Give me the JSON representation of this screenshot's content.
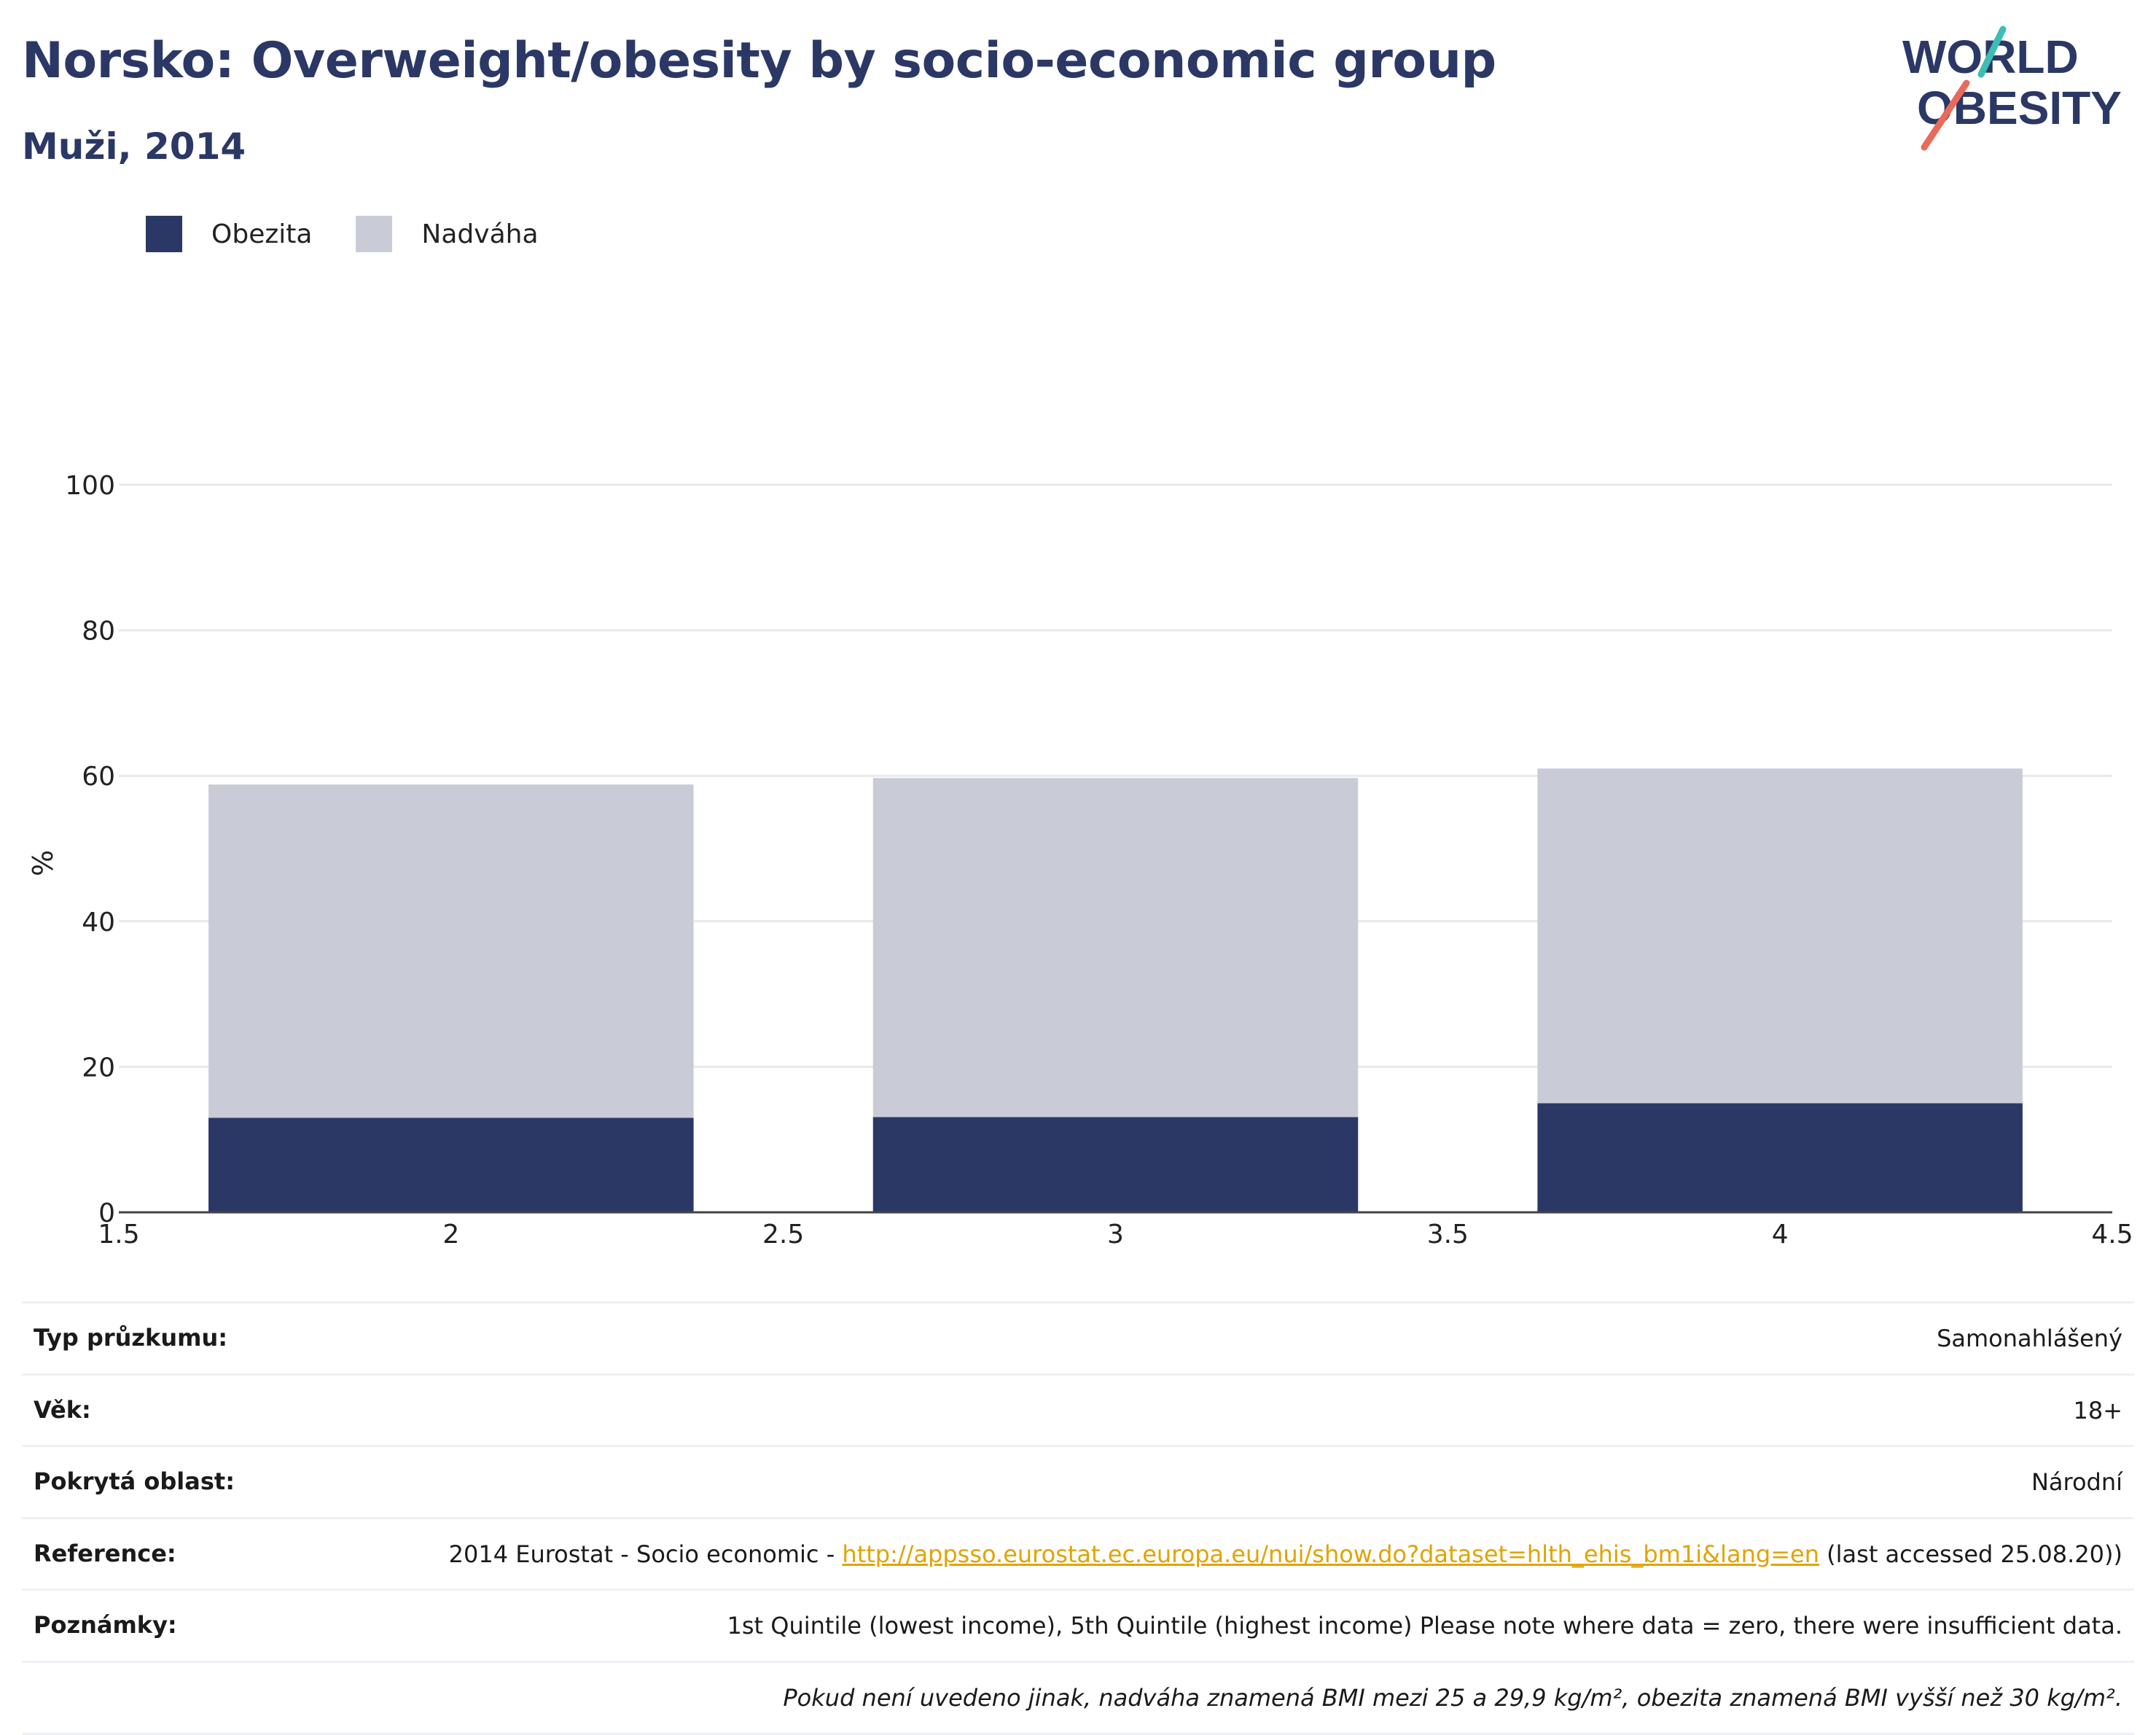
{
  "title": "Norsko: Overweight/obesity by socio-economic group",
  "subtitle": "Muži, 2014",
  "logo": {
    "line1": "WORLD",
    "line2": "OBESITY",
    "colors": {
      "navy": "#2b3866",
      "teal": "#3dbdb4",
      "coral": "#e86a5a"
    }
  },
  "colors": {
    "obesity": "#2b3866",
    "overweight": "#c9ccd6",
    "title": "#2b3866",
    "link": "#e0a400"
  },
  "chart_data": {
    "type": "bar",
    "stacked": true,
    "x": [
      2,
      3,
      4
    ],
    "series": [
      {
        "name": "Obezita",
        "values": [
          13.0,
          13.1,
          15.0
        ],
        "color": "#2b3866"
      },
      {
        "name": "Nadváha",
        "values": [
          45.8,
          46.6,
          46.0
        ],
        "color": "#c9ccd6"
      }
    ],
    "xlim": [
      1.5,
      4.5
    ],
    "xticks": [
      "1.5",
      "2",
      "2.5",
      "3",
      "3.5",
      "4",
      "4.5"
    ],
    "ylim": [
      0,
      100
    ],
    "yticks": [
      "0",
      "20",
      "40",
      "60",
      "80",
      "100"
    ],
    "ylabel": "%",
    "xlabel": "",
    "grid": true,
    "legend_position": "top-left"
  },
  "info": {
    "survey_type": {
      "label": "Typ průzkumu:",
      "value": "Samonahlášený"
    },
    "age": {
      "label": "Věk:",
      "value": "18+"
    },
    "area": {
      "label": "Pokrytá oblast:",
      "value": "Národní"
    },
    "reference": {
      "label": "Reference:",
      "prefix": "2014 Eurostat - Socio economic - ",
      "link": "http://appsso.eurostat.ec.europa.eu/nui/show.do?dataset=hlth_ehis_bm1i&lang=en",
      "suffix": " (last accessed 25.08.20))"
    },
    "notes": {
      "label": "Poznámky:",
      "value": "1st Quintile (lowest income), 5th Quintile (highest income) Please note where data = zero, there were insufficient data."
    },
    "footnote": "Pokud není uvedeno jinak, nadváha znamená BMI mezi 25 a 29,9 kg/m², obezita znamená BMI vyšší než 30 kg/m²."
  }
}
